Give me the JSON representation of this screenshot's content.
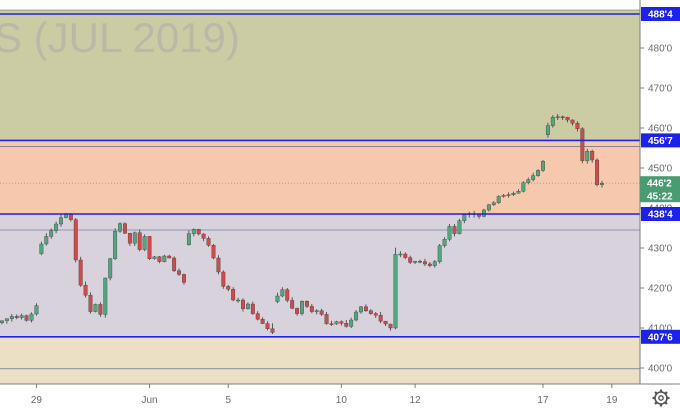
{
  "chart_data": {
    "type": "candlestick",
    "watermark": "S (JUL 2019)",
    "ylim": [
      396,
      492
    ],
    "y_ticks": [
      {
        "value": 400,
        "label": "400'0"
      },
      {
        "value": 410,
        "label": "410'0"
      },
      {
        "value": 420,
        "label": "420'0"
      },
      {
        "value": 430,
        "label": "430'0"
      },
      {
        "value": 440,
        "label": "440'0"
      },
      {
        "value": 450,
        "label": "450'0"
      },
      {
        "value": 460,
        "label": "460'0"
      },
      {
        "value": 470,
        "label": "470'0"
      },
      {
        "value": 480,
        "label": "480'0"
      }
    ],
    "x_ticks": [
      "29",
      "Jun",
      "5",
      "10",
      "12",
      "17",
      "19"
    ],
    "zones": [
      {
        "from": 456.9,
        "to": 489.5,
        "color": "#cbcca4"
      },
      {
        "from": 438.5,
        "to": 456.9,
        "color": "#f6c8ad"
      },
      {
        "from": 407.8,
        "to": 438.5,
        "color": "#d8d2dc"
      },
      {
        "from": 396,
        "to": 407.8,
        "color": "#ece0c4"
      }
    ],
    "levels": [
      {
        "value": 488.5,
        "label": "488'4"
      },
      {
        "value": 456.9,
        "label": "456'7"
      },
      {
        "value": 438.5,
        "label": "438'4"
      },
      {
        "value": 407.8,
        "label": "407'6"
      }
    ],
    "thin_lines": [
      489.5,
      455.4,
      434.5,
      399.8
    ],
    "last_price": {
      "value": 446.2,
      "label": "446'2"
    },
    "countdown": "45:22",
    "close": [
      411.8,
      412.3,
      412.9,
      412.6,
      413.1,
      411.9,
      413.5,
      415.6,
      431.0,
      432.9,
      434.3,
      436.0,
      437.6,
      438.4,
      437.1,
      427.0,
      420.7,
      418.2,
      414.1,
      415.9,
      413.4,
      422.5,
      427.3,
      434.2,
      436.1,
      433.7,
      431.2,
      433.8,
      429.6,
      432.9,
      427.3,
      427.8,
      426.6,
      428.0,
      427.5,
      424.3,
      423.4,
      421.4,
      433.6,
      434.7,
      433.5,
      432.4,
      430.7,
      427.5,
      424.0,
      420.4,
      419.7,
      417.0,
      417.0,
      414.8,
      416.0,
      413.6,
      412.2,
      411.1,
      409.8,
      408.9,
      418.0,
      419.6,
      416.9,
      414.9,
      413.6,
      416.7,
      415.4,
      414.1,
      414.3,
      413.4,
      411.1,
      411.0,
      411.6,
      411.2,
      410.4,
      412.0,
      414.0,
      415.3,
      414.3,
      413.6,
      413.2,
      411.7,
      411.0,
      410.0,
      428.4,
      428.5,
      427.6,
      426.4,
      426.7,
      426.6,
      426.0,
      425.6,
      426.6,
      430.6,
      432.2,
      435.4,
      433.6,
      436.8,
      438.3,
      438.6,
      438.6,
      437.9,
      439.5,
      440.8,
      441.3,
      442.9,
      443.2,
      443.3,
      443.7,
      444.2,
      446.3,
      447.1,
      448.1,
      449.4,
      451.7,
      460.6,
      462.7,
      462.8,
      462.7,
      462.0,
      461.2,
      459.8,
      451.8,
      454.2,
      452.0,
      445.8,
      446.2
    ],
    "open": [
      411.3,
      411.8,
      412.3,
      412.9,
      412.6,
      413.1,
      411.9,
      413.5,
      428.6,
      431.0,
      432.9,
      434.3,
      436.0,
      437.6,
      438.4,
      437.1,
      427.0,
      420.7,
      418.2,
      414.1,
      415.9,
      413.4,
      422.5,
      427.3,
      434.2,
      436.1,
      433.7,
      431.2,
      433.8,
      429.6,
      432.9,
      427.3,
      427.8,
      426.6,
      428.0,
      427.5,
      424.3,
      423.4,
      430.8,
      433.6,
      434.7,
      433.5,
      432.4,
      430.7,
      427.5,
      424.0,
      420.4,
      419.7,
      417.0,
      417.0,
      414.8,
      416.0,
      413.6,
      412.2,
      411.1,
      409.8,
      416.6,
      418.0,
      419.6,
      416.9,
      414.9,
      413.6,
      416.7,
      415.4,
      414.1,
      414.3,
      413.4,
      411.1,
      411.0,
      411.6,
      411.2,
      410.4,
      412.0,
      414.0,
      415.3,
      414.3,
      413.6,
      413.2,
      411.7,
      411.0,
      410.0,
      428.4,
      428.5,
      427.6,
      426.4,
      426.7,
      426.6,
      426.0,
      425.6,
      426.6,
      430.6,
      432.2,
      435.4,
      433.6,
      436.8,
      438.3,
      438.6,
      438.6,
      437.9,
      439.5,
      440.8,
      441.3,
      442.9,
      443.2,
      443.3,
      443.7,
      444.2,
      446.3,
      447.1,
      448.1,
      449.4,
      458.3,
      460.6,
      462.7,
      462.8,
      462.7,
      462.0,
      461.2,
      459.8,
      451.8,
      454.2,
      452.0,
      445.8
    ],
    "high": [
      411.9,
      412.4,
      413.5,
      413.4,
      413.6,
      413.3,
      413.9,
      416.2,
      431.6,
      433.7,
      434.9,
      436.6,
      438.6,
      438.8,
      438.7,
      437.5,
      427.8,
      421.6,
      418.9,
      416.1,
      416.4,
      422.6,
      427.5,
      434.9,
      436.4,
      436.4,
      433.8,
      434.1,
      434.6,
      433.4,
      433.0,
      428.0,
      428.0,
      428.3,
      428.3,
      427.9,
      424.9,
      423.6,
      434.4,
      434.9,
      434.8,
      433.7,
      432.9,
      431.0,
      428.2,
      424.4,
      420.8,
      420.2,
      417.6,
      417.4,
      416.4,
      416.6,
      414.2,
      412.7,
      411.7,
      411.2,
      418.8,
      420.2,
      420.0,
      417.7,
      415.1,
      416.9,
      416.9,
      416.0,
      414.7,
      414.8,
      414.0,
      411.8,
      411.8,
      411.9,
      412.0,
      412.6,
      414.5,
      415.5,
      415.9,
      414.7,
      414.0,
      414.0,
      411.8,
      411.0,
      430.1,
      429.2,
      428.9,
      428.1,
      426.8,
      427.1,
      427.3,
      426.5,
      427.0,
      431.0,
      432.7,
      436.0,
      436.0,
      437.3,
      438.5,
      439.1,
      439.3,
      438.6,
      439.8,
      441.0,
      441.7,
      443.2,
      443.5,
      443.9,
      444.1,
      444.7,
      446.7,
      447.6,
      448.8,
      449.7,
      452.0,
      461.3,
      463.2,
      463.5,
      463.1,
      462.8,
      462.2,
      461.7,
      460.2,
      454.8,
      454.6,
      452.4,
      446.8
    ],
    "low": [
      410.9,
      411.1,
      411.6,
      412.2,
      412.1,
      411.6,
      411.4,
      413.1,
      428.2,
      430.6,
      432.3,
      433.7,
      435.3,
      437.4,
      436.6,
      426.4,
      420.3,
      417.6,
      413.6,
      413.9,
      412.8,
      412.6,
      421.9,
      427.0,
      433.8,
      433.5,
      430.5,
      430.5,
      429.2,
      429.2,
      427.0,
      427.1,
      426.2,
      426.4,
      427.4,
      424.0,
      423.0,
      420.8,
      430.6,
      432.9,
      433.2,
      431.7,
      430.3,
      427.2,
      423.4,
      419.8,
      419.2,
      416.7,
      416.3,
      414.1,
      414.6,
      413.3,
      411.9,
      411.0,
      409.4,
      408.5,
      416.2,
      417.7,
      416.4,
      414.7,
      413.1,
      413.1,
      415.0,
      413.7,
      413.4,
      413.0,
      410.8,
      410.5,
      410.8,
      410.6,
      410.1,
      410.0,
      411.7,
      413.6,
      414.0,
      413.3,
      412.5,
      411.2,
      410.5,
      409.3,
      409.7,
      427.7,
      427.2,
      426.0,
      426.0,
      426.2,
      425.5,
      425.2,
      425.1,
      426.1,
      430.1,
      431.7,
      432.9,
      433.4,
      436.2,
      437.6,
      437.6,
      437.3,
      437.7,
      439.1,
      440.5,
      441.0,
      442.6,
      442.6,
      443.0,
      443.6,
      443.9,
      445.9,
      446.6,
      447.8,
      449.0,
      457.6,
      460.1,
      462.0,
      462.0,
      461.4,
      460.6,
      459.1,
      451.2,
      451.1,
      451.3,
      445.4,
      445.1
    ]
  }
}
